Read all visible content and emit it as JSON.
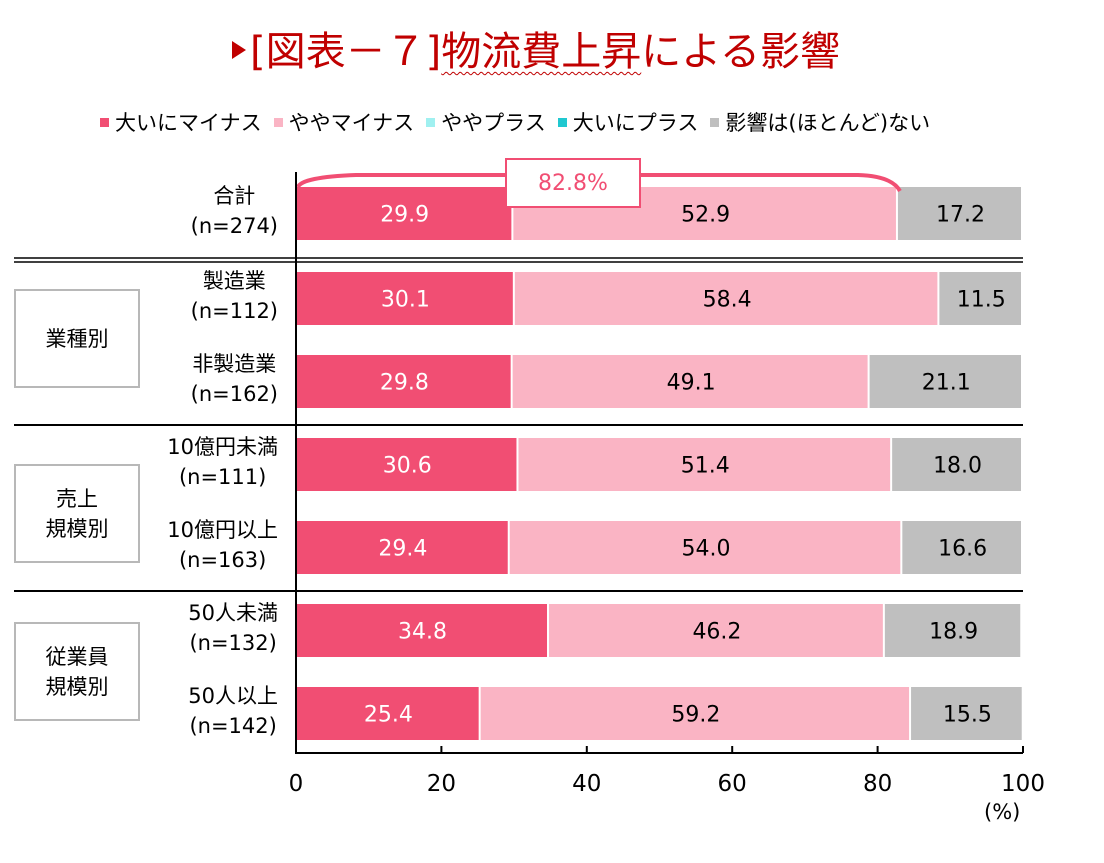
{
  "title": {
    "prefix": "[図表－７]",
    "underlined": "物流費上昇",
    "suffix": "による影響"
  },
  "colors": {
    "title": "#c00000",
    "major_minus": "#f14e73",
    "minor_minus": "#fab4c4",
    "minor_plus": "#a0f0f0",
    "major_plus": "#20c8d0",
    "none": "#bfbfbf",
    "axis": "#000000"
  },
  "chart_data": {
    "type": "bar",
    "orientation": "horizontal-stacked",
    "title": "[図表－７]物流費上昇による影響",
    "xlabel": "(%)",
    "xlim": [
      0,
      100
    ],
    "xticks": [
      0,
      20,
      40,
      60,
      80,
      100
    ],
    "legend_position": "top",
    "legend": [
      "大いにマイナス",
      "ややマイナス",
      "ややプラス",
      "大いにプラス",
      "影響は(ほとんど)ない"
    ],
    "categories": [
      {
        "name": "合計",
        "n": "(n=274)",
        "group": null
      },
      {
        "name": "製造業",
        "n": "(n=112)",
        "group": "業種別"
      },
      {
        "name": "非製造業",
        "n": "(n=162)",
        "group": "業種別"
      },
      {
        "name": "10億円未満",
        "n": "(n=111)",
        "group": "売上規模別"
      },
      {
        "name": "10億円以上",
        "n": "(n=163)",
        "group": "売上規模別"
      },
      {
        "name": "50人未満",
        "n": "(n=132)",
        "group": "従業員規模別"
      },
      {
        "name": "50人以上",
        "n": "(n=142)",
        "group": "従業員規模別"
      }
    ],
    "series": [
      {
        "name": "大いにマイナス",
        "values": [
          29.9,
          30.1,
          29.8,
          30.6,
          29.4,
          34.8,
          25.4
        ]
      },
      {
        "name": "ややマイナス",
        "values": [
          52.9,
          58.4,
          49.1,
          51.4,
          54.0,
          46.2,
          59.2
        ]
      },
      {
        "name": "ややプラス",
        "values": [
          0,
          0,
          0,
          0,
          0,
          0,
          0
        ]
      },
      {
        "name": "大いにプラス",
        "values": [
          0,
          0,
          0,
          0,
          0,
          0,
          0
        ]
      },
      {
        "name": "影響は(ほとんど)ない",
        "values": [
          17.2,
          11.5,
          21.1,
          18.0,
          16.6,
          18.9,
          15.5
        ]
      }
    ],
    "labels": [
      [
        "29.9",
        "52.9",
        "17.2"
      ],
      [
        "30.1",
        "58.4",
        "11.5"
      ],
      [
        "29.8",
        "49.1",
        "21.1"
      ],
      [
        "30.6",
        "51.4",
        "18.0"
      ],
      [
        "29.4",
        "54.0",
        "16.6"
      ],
      [
        "34.8",
        "46.2",
        "18.9"
      ],
      [
        "25.4",
        "59.2",
        "15.5"
      ]
    ],
    "annotation": {
      "text": "82.8%",
      "spans_series": [
        "大いにマイナス",
        "ややマイナス"
      ],
      "category": "合計"
    },
    "groups": [
      {
        "label_lines": [
          "業種別"
        ]
      },
      {
        "label_lines": [
          "売上",
          "規模別"
        ]
      },
      {
        "label_lines": [
          "従業員",
          "規模別"
        ]
      }
    ]
  }
}
